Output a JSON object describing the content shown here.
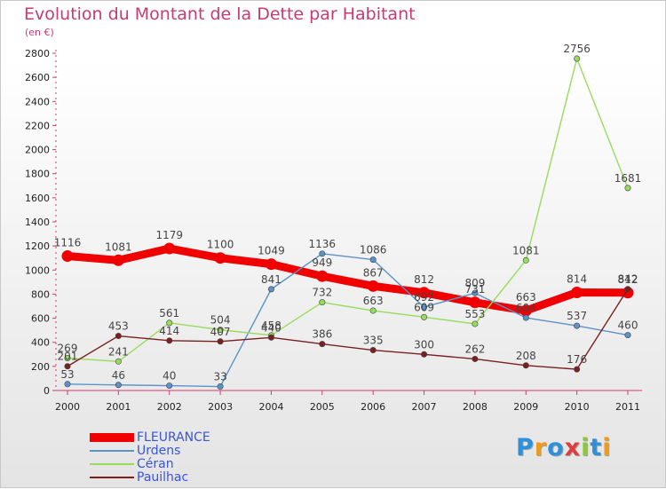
{
  "title": "Evolution du Montant de la Dette par Habitant",
  "subtitle": "(en €)",
  "logo": {
    "text": "Proxiti",
    "letter_colors": [
      "#2f8fd8",
      "#ef9a1c",
      "#2f8fd8",
      "#e23b3b",
      "#8cc63f",
      "#2f8fd8",
      "#ef9a1c"
    ]
  },
  "chart_data": {
    "type": "line",
    "categories": [
      "2000",
      "2001",
      "2002",
      "2003",
      "2004",
      "2005",
      "2006",
      "2007",
      "2008",
      "2009",
      "2010",
      "2011"
    ],
    "ylim": [
      0,
      2800
    ],
    "yticks": [
      "0",
      "200",
      "400",
      "600",
      "800",
      "1000",
      "1200",
      "1400",
      "1600",
      "1800",
      "2000",
      "2200",
      "2400",
      "2600",
      "2800"
    ],
    "grid": false,
    "legend_position": "bottom-left",
    "series": [
      {
        "name": "FLEURANCE",
        "color": "#f00000",
        "emphasis": true,
        "values": [
          1116,
          1081,
          1179,
          1100,
          1049,
          949,
          867,
          812,
          731,
          663,
          814,
          812
        ]
      },
      {
        "name": "Urdens",
        "color": "#5b93c8",
        "values": [
          53,
          46,
          40,
          33,
          841,
          1136,
          1086,
          692,
          809,
          604,
          537,
          460
        ]
      },
      {
        "name": "Céran",
        "color": "#98dc5c",
        "values": [
          269,
          241,
          561,
          504,
          458,
          732,
          663,
          609,
          553,
          1081,
          2756,
          1681
        ]
      },
      {
        "name": "Pauilhac",
        "color": "#7a2020",
        "values": [
          201,
          453,
          414,
          407,
          440,
          386,
          335,
          300,
          262,
          208,
          176,
          842
        ]
      }
    ]
  }
}
